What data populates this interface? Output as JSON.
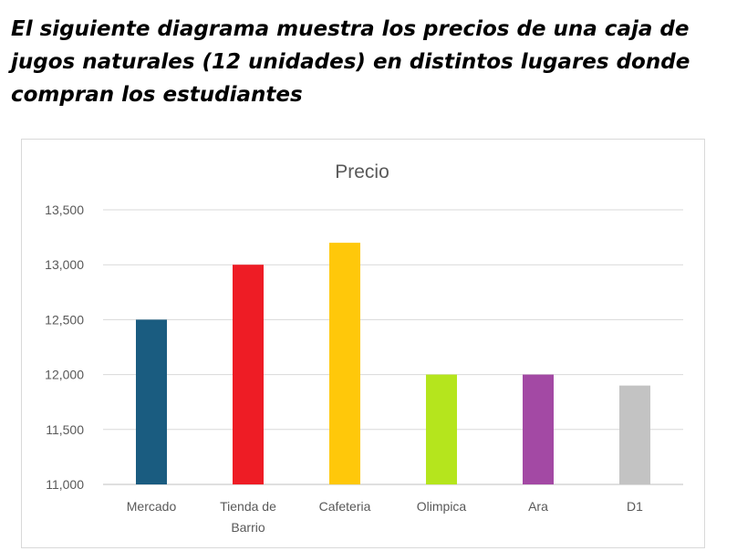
{
  "heading": "El siguiente diagrama muestra los precios de una caja de jugos naturales (12 unidades) en distintos lugares donde compran los estudiantes",
  "chart_data": {
    "type": "bar",
    "title": "Precio",
    "xlabel": "",
    "ylabel": "",
    "ylim": [
      11000,
      13500
    ],
    "yticks": [
      "11,000",
      "11,500",
      "12,000",
      "12,500",
      "13,000",
      "13,500"
    ],
    "ytick_values": [
      11000,
      11500,
      12000,
      12500,
      13000,
      13500
    ],
    "grid": true,
    "legend": "none",
    "categories": [
      "Mercado",
      "Tienda de Barrio",
      "Cafeteria",
      "Olimpica",
      "Ara",
      "D1"
    ],
    "category_lines": [
      [
        "Mercado"
      ],
      [
        "Tienda de",
        "Barrio"
      ],
      [
        "Cafeteria"
      ],
      [
        "Olimpica"
      ],
      [
        "Ara"
      ],
      [
        "D1"
      ]
    ],
    "values": [
      12500,
      13000,
      13200,
      12000,
      12000,
      11900
    ],
    "colors": [
      "#1a5c80",
      "#ee1c25",
      "#ffc80a",
      "#b5e51d",
      "#a349a4",
      "#c3c3c3"
    ]
  }
}
